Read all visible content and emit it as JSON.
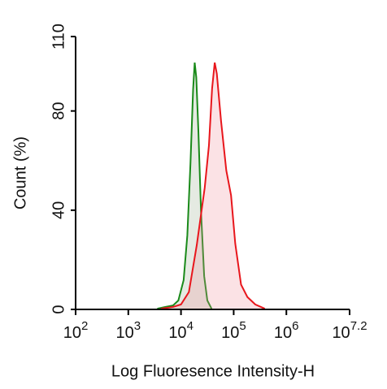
{
  "chart_data": {
    "type": "histogram-lines",
    "xlabel": "Log Fluoresence Intensity-H",
    "ylabel": "Count  (%)",
    "xscale": "log",
    "xlim": [
      100,
      15848931.9
    ],
    "xticks": [
      {
        "value": 100,
        "label": "10^2"
      },
      {
        "value": 1000,
        "label": "10^3"
      },
      {
        "value": 10000,
        "label": "10^4"
      },
      {
        "value": 100000,
        "label": "10^5"
      },
      {
        "value": 1000000,
        "label": "10^6"
      },
      {
        "value": 15848931.9,
        "label": "10^7.2"
      }
    ],
    "ylim": [
      0,
      110
    ],
    "yticks": [
      0,
      40,
      80,
      110
    ],
    "series": [
      {
        "color": "#1a8a1a",
        "fill": "rgba(150,170,140,0.25)",
        "x": [
          3548,
          5012,
          7079,
          8913,
          11220,
          13183,
          15136,
          16982,
          18197,
          19498,
          21380,
          23988,
          27542,
          31623,
          38019
        ],
        "values": [
          0.3,
          1,
          1.6,
          3.6,
          11.8,
          29.8,
          59,
          88.7,
          99.5,
          93.6,
          72,
          39.6,
          13.4,
          3.6,
          0.3
        ]
      },
      {
        "color": "#e8161c",
        "fill": "rgba(240,140,150,0.25)",
        "x": [
          4169,
          7079,
          10000,
          14125,
          19953,
          28184,
          33884,
          38905,
          43652,
          47863,
          57544,
          72444,
          89125,
          107152,
          138038,
          181970,
          257040,
          389045
        ],
        "values": [
          0.3,
          1,
          2,
          7,
          26,
          49,
          66,
          89,
          99.5,
          95,
          76,
          56,
          46,
          26.5,
          10,
          5,
          2,
          0.3
        ]
      }
    ]
  }
}
